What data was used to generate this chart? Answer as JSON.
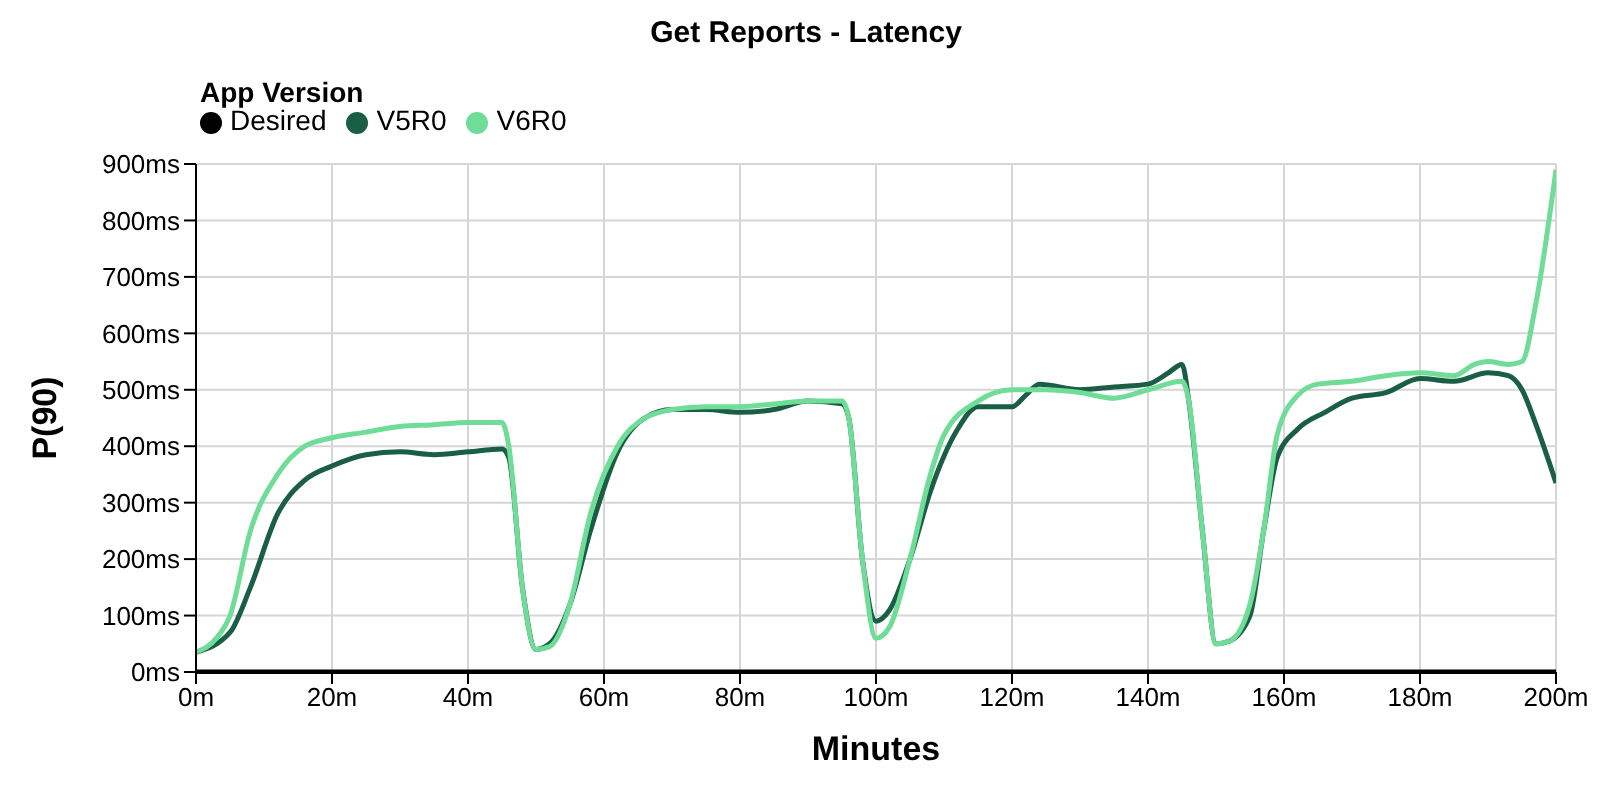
{
  "chart_data": {
    "type": "line",
    "title": "Get Reports - Latency",
    "xlabel": "Minutes",
    "ylabel": "P(90)",
    "legend_title": "App Version",
    "legend": "top left",
    "grid": true,
    "marker": "none",
    "line_style": "solid",
    "xlim": [
      0,
      200
    ],
    "xticks": [
      {
        "value": 0,
        "label": "0m"
      },
      {
        "value": 20,
        "label": "20m"
      },
      {
        "value": 40,
        "label": "40m"
      },
      {
        "value": 60,
        "label": "60m"
      },
      {
        "value": 80,
        "label": "80m"
      },
      {
        "value": 100,
        "label": "100m"
      },
      {
        "value": 120,
        "label": "120m"
      },
      {
        "value": 140,
        "label": "140m"
      },
      {
        "value": 160,
        "label": "160m"
      },
      {
        "value": 180,
        "label": "180m"
      },
      {
        "value": 200,
        "label": "200m"
      }
    ],
    "ylim": [
      0,
      900
    ],
    "yticks": [
      {
        "value": 0,
        "label": "0ms"
      },
      {
        "value": 100,
        "label": "100ms"
      },
      {
        "value": 200,
        "label": "200ms"
      },
      {
        "value": 300,
        "label": "300ms"
      },
      {
        "value": 400,
        "label": "400ms"
      },
      {
        "value": 500,
        "label": "500ms"
      },
      {
        "value": 600,
        "label": "600ms"
      },
      {
        "value": 700,
        "label": "700ms"
      },
      {
        "value": 800,
        "label": "800ms"
      },
      {
        "value": 900,
        "label": "900ms"
      }
    ],
    "series": [
      {
        "name": "Desired",
        "color": "#000000",
        "x": [
          0,
          200
        ],
        "values": [
          0,
          0
        ]
      },
      {
        "name": "V5R0",
        "color": "#1a5e45",
        "x": [
          0,
          5,
          8,
          12,
          16,
          20,
          25,
          30,
          35,
          40,
          45,
          46,
          48,
          50,
          52,
          55,
          58,
          62,
          66,
          70,
          75,
          80,
          85,
          90,
          95,
          96,
          98,
          100,
          102,
          105,
          108,
          112,
          115,
          120,
          122,
          124,
          130,
          135,
          140,
          143,
          145,
          146,
          148,
          150,
          152,
          155,
          157,
          159,
          162,
          166,
          170,
          175,
          180,
          185,
          190,
          193,
          195,
          197,
          200
        ],
        "values": [
          35,
          70,
          150,
          280,
          340,
          365,
          385,
          390,
          385,
          390,
          395,
          380,
          150,
          40,
          50,
          120,
          250,
          390,
          450,
          465,
          465,
          460,
          465,
          480,
          475,
          450,
          200,
          90,
          110,
          200,
          320,
          430,
          470,
          470,
          490,
          510,
          500,
          505,
          510,
          530,
          545,
          480,
          250,
          50,
          55,
          100,
          250,
          380,
          430,
          460,
          485,
          495,
          520,
          515,
          530,
          525,
          500,
          440,
          335
        ]
      },
      {
        "name": "V6R0",
        "color": "#6fdc98",
        "x": [
          0,
          3,
          5,
          8,
          12,
          16,
          20,
          25,
          30,
          35,
          40,
          45,
          46,
          48,
          50,
          52,
          55,
          58,
          62,
          66,
          70,
          75,
          80,
          85,
          90,
          95,
          96,
          98,
          100,
          102,
          105,
          108,
          110,
          115,
          120,
          125,
          130,
          135,
          140,
          145,
          146,
          148,
          150,
          152,
          155,
          157,
          159,
          162,
          165,
          170,
          175,
          180,
          185,
          188,
          190,
          193,
          195,
          197,
          200
        ],
        "values": [
          35,
          60,
          100,
          250,
          350,
          400,
          415,
          425,
          435,
          438,
          442,
          442,
          400,
          150,
          40,
          45,
          120,
          280,
          400,
          450,
          465,
          470,
          470,
          475,
          480,
          480,
          450,
          200,
          60,
          80,
          200,
          350,
          420,
          480,
          500,
          500,
          495,
          485,
          500,
          515,
          480,
          250,
          50,
          55,
          120,
          250,
          420,
          490,
          510,
          515,
          525,
          530,
          525,
          545,
          550,
          545,
          550,
          650,
          890
        ]
      }
    ]
  }
}
